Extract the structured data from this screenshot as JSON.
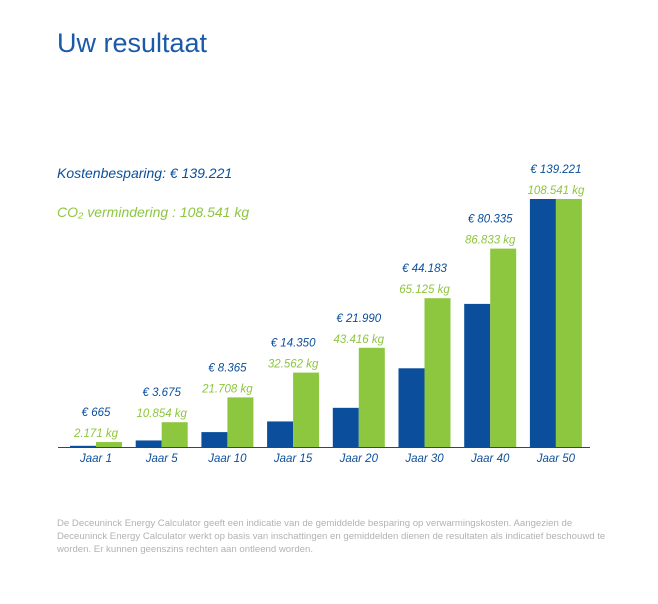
{
  "page": {
    "title": "Uw resultaat",
    "summary": {
      "cost_label": "Kostenbesparing: € 139.221",
      "co2_label": "CO₂ vermindering : 108.541 kg"
    },
    "disclaimer": "De Deceuninck Energy Calculator geeft een indicatie van de gemiddelde besparing op verwarmingskosten. Aangezien de Deceuninck Energy Calculator werkt op basis van inschattingen en gemiddelden dienen de resultaten als indicatief beschouwd te worden. Er kunnen geenszins rechten aan ontleend worden."
  },
  "colors": {
    "cost": "#0b4f9c",
    "co2": "#8dc63f",
    "title": "#1a5aa6",
    "disclaimer": "#b2b2b2"
  },
  "chart_data": {
    "type": "bar",
    "categories": [
      "Jaar 1",
      "Jaar 5",
      "Jaar 10",
      "Jaar 15",
      "Jaar 20",
      "Jaar 30",
      "Jaar 40",
      "Jaar 50"
    ],
    "series": [
      {
        "values": [
          665,
          3675,
          8365,
          14350,
          21990,
          44183,
          80335,
          139221
        ],
        "labels": [
          "€ 665",
          "€ 3.675",
          "€ 8.365",
          "€ 14.350",
          "€ 21.990",
          "€ 44.183",
          "€ 80.335",
          "€ 139.221"
        ]
      },
      {
        "values": [
          2171,
          10854,
          21708,
          32562,
          43416,
          65125,
          86833,
          108541
        ],
        "labels": [
          "2.171 kg",
          "10.854 kg",
          "21.708 kg",
          "32.562 kg",
          "43.416 kg",
          "65.125 kg",
          "86.833 kg",
          "108.541 kg"
        ]
      }
    ],
    "axes": "independent per series",
    "grid": false,
    "legend": "none"
  }
}
